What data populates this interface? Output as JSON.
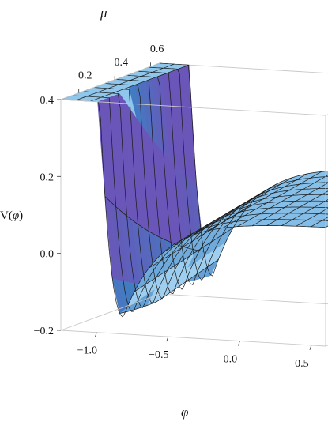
{
  "chart_data": {
    "type": "surface3d",
    "function": "V(φ) potential surface over φ and μ",
    "axes": {
      "x": {
        "label": "φ",
        "range": [
          -1.25,
          0.6
        ],
        "ticks": [
          {
            "value": -1.0,
            "label": "−1.0"
          },
          {
            "value": -0.5,
            "label": "−0.5"
          },
          {
            "value": 0.0,
            "label": "0.0"
          },
          {
            "value": 0.5,
            "label": "0.5"
          }
        ]
      },
      "y": {
        "label": "μ",
        "range": [
          0.1,
          0.65
        ],
        "ticks": [
          {
            "value": 0.2,
            "label": "0.2"
          },
          {
            "value": 0.4,
            "label": "0.4"
          },
          {
            "value": 0.6,
            "label": "0.6"
          }
        ]
      },
      "z": {
        "label": "V(φ)",
        "label_parts": {
          "main": "V(",
          "var": "φ",
          "end": ")"
        },
        "range": [
          -0.2,
          0.4
        ],
        "ticks": [
          {
            "value": 0.4,
            "label": "0.4"
          },
          {
            "value": 0.2,
            "label": "0.2"
          },
          {
            "value": 0.0,
            "label": "0.0"
          },
          {
            "value": -0.2,
            "label": "−0.2"
          }
        ]
      }
    },
    "surface_description": "Potential well with a steep wall for φ < −1, a minimum of about −0.15 near φ ≈ −0.85, rising to a plateau of about 0.1–0.15 for positive φ; clipped at V = 0.4",
    "box": true,
    "mesh": true,
    "colors": {
      "surface_light": "#d6ecfa",
      "surface_mid": "#8ec6ec",
      "surface_dark": "#3f7fc2",
      "surface_shadow": "#6a55b8",
      "mesh_line": "#1a1a1a",
      "box_line": "#c8c8c8"
    }
  }
}
